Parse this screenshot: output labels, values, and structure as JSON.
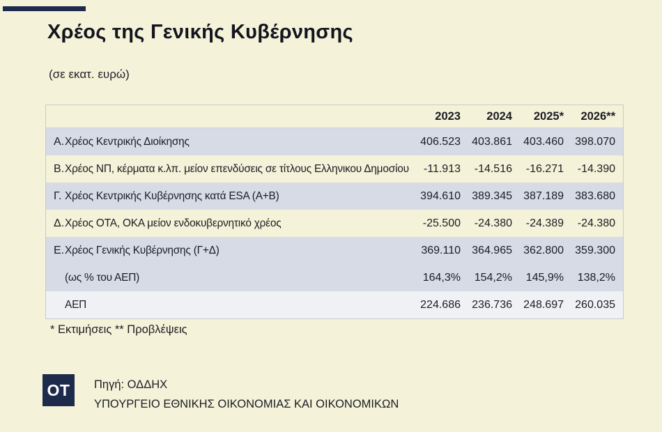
{
  "header": {
    "title": "Χρέος της Γενικής Κυβέρνησης",
    "subtitle": "(σε εκατ. ευρώ)"
  },
  "chart_data": {
    "type": "table",
    "title": "Χρέος της Γενικής Κυβέρνησης",
    "unit": "σε εκατ. ευρώ",
    "columns": [
      "2023",
      "2024",
      "2025*",
      "2026**"
    ],
    "rows": [
      {
        "letter": "Α.",
        "label": "Χρέος Κεντρικής Διοίκησης",
        "values": [
          "406.523",
          "403.861",
          "403.460",
          "398.070"
        ]
      },
      {
        "letter": "Β.",
        "label": "Χρέος ΝΠ, κέρματα κ.λπ. μείον επενδύσεις σε τίτλους Ελληνικου Δημοσίου",
        "values": [
          "-11.913",
          "-14.516",
          "-16.271",
          "-14.390"
        ]
      },
      {
        "letter": "Γ.",
        "label": "Χρέος Κεντρικής Κυβέρνησης κατά ESA (Α+Β)",
        "values": [
          "394.610",
          "389.345",
          "387.189",
          "383.680"
        ]
      },
      {
        "letter": "Δ.",
        "label": "Χρέος ΟΤΑ, ΟΚΑ μείον ενδοκυβερνητικό χρέος",
        "values": [
          "-25.500",
          "-24.380",
          "-24.389",
          "-24.380"
        ]
      },
      {
        "letter": "Ε.",
        "label": "Χρέος Γενικής Κυβέρνησης (Γ+Δ)",
        "values": [
          "369.110",
          "364.965",
          "362.800",
          "359.300"
        ]
      },
      {
        "letter": "",
        "label": "(ως % του ΑΕΠ)",
        "values": [
          "164,3%",
          "154,2%",
          "145,9%",
          "138,2%"
        ]
      },
      {
        "letter": "",
        "label": "ΑΕΠ",
        "values": [
          "224.686",
          "236.736",
          "248.697",
          "260.035"
        ]
      }
    ]
  },
  "footnote": "* Εκτιμήσεις ** Προβλέψεις",
  "source": {
    "logo_text": "OT",
    "line1": "Πηγή: ΟΔΔΗΧ",
    "line2": "ΥΠΟΥΡΓΕΙΟ ΕΘΝΙΚΗΣ ΟΙΚΟΝΟΜΙΑΣ ΚΑΙ ΟΙΚΟΝΟΜΙΚΩΝ"
  },
  "colors": {
    "background": "#f4f2d8",
    "accent_navy": "#1d2a4c",
    "row_highlight_blue": "#d6dbe6",
    "row_neutral_gray": "#eff1f4",
    "table_border": "#c9cbcd"
  }
}
